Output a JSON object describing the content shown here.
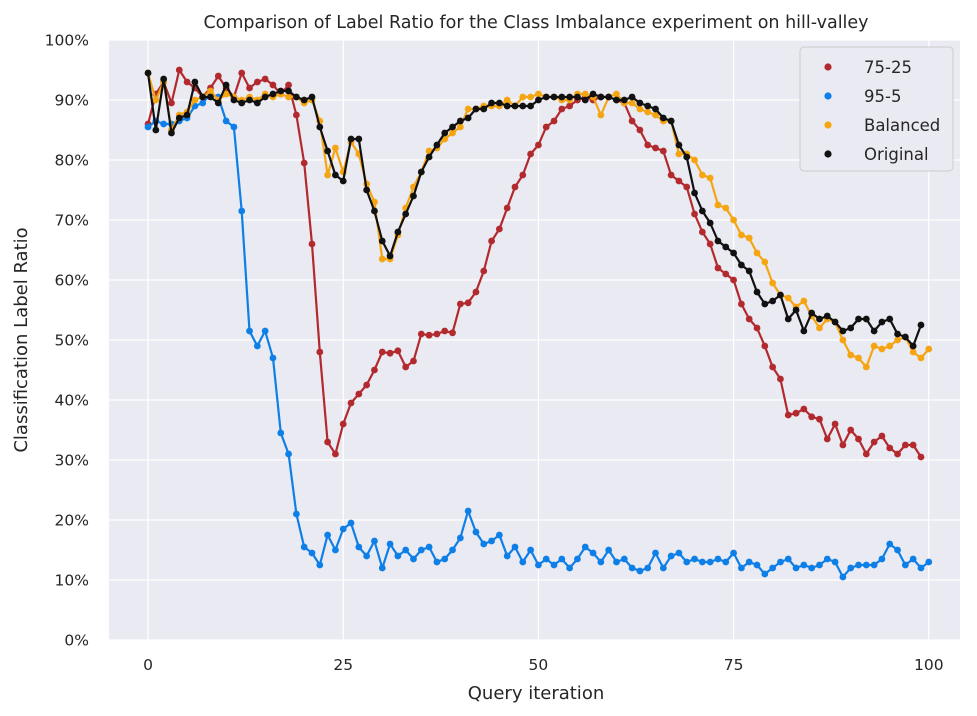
{
  "chart_data": {
    "type": "line",
    "title": "Comparison of Label Ratio for the Class Imbalance experiment on hill-valley",
    "xlabel": "Query iteration",
    "ylabel": "Classification Label Ratio",
    "xlim": [
      -5,
      104
    ],
    "ylim": [
      0,
      100
    ],
    "xticks": [
      0,
      25,
      50,
      75,
      100
    ],
    "yticks": [
      0,
      10,
      20,
      30,
      40,
      50,
      60,
      70,
      80,
      90,
      100
    ],
    "ytick_labels": [
      "0%",
      "10%",
      "20%",
      "30%",
      "40%",
      "50%",
      "60%",
      "70%",
      "80%",
      "90%",
      "100%"
    ],
    "xtick_labels": [
      "0",
      "25",
      "50",
      "75",
      "100"
    ],
    "grid": true,
    "background": "#eaeaf2",
    "legend_position": "top-right",
    "markers": "dots",
    "series": [
      {
        "name": "75-25",
        "color": "#b22a2e",
        "values": [
          86,
          91,
          93,
          89.5,
          95,
          93,
          92,
          90.5,
          92,
          94,
          92,
          90.5,
          94.5,
          92,
          93,
          93.5,
          92.5,
          91,
          92.5,
          87.5,
          79.5,
          66,
          48,
          33,
          31,
          36,
          39.5,
          41,
          42.5,
          45,
          48,
          47.8,
          48.2,
          45.5,
          46.5,
          51,
          50.8,
          51,
          51.5,
          51.2,
          56,
          56.2,
          58,
          61.5,
          66.5,
          68.5,
          72,
          75.5,
          77.5,
          81,
          82.5,
          85.5,
          86.5,
          88.5,
          89,
          90,
          90.5,
          90,
          90.5,
          90.5,
          90,
          89.5,
          86.5,
          85,
          82.5,
          82,
          81.5,
          77.5,
          76.5,
          75.5,
          71,
          68,
          66,
          62,
          61,
          60,
          56,
          53.5,
          52,
          49,
          45.5,
          43.5,
          37.5,
          37.8,
          38.5,
          37.2,
          36.8,
          33.5,
          36,
          32.5,
          35,
          33.5,
          31,
          33,
          34,
          32,
          31,
          32.5,
          32.5,
          30.5
        ]
      },
      {
        "name": "95-5",
        "color": "#0f7fe8",
        "values": [
          85.5,
          86.5,
          86,
          86,
          86.5,
          87,
          89,
          89.5,
          91,
          90.5,
          86.5,
          85.5,
          71.5,
          51.5,
          49,
          51.5,
          47,
          34.5,
          31,
          21,
          15.5,
          14.5,
          12.5,
          17.5,
          15,
          18.5,
          19.5,
          15.5,
          14,
          16.5,
          12,
          16,
          14,
          15,
          13.5,
          15,
          15.5,
          13,
          13.5,
          15,
          17,
          21.5,
          18,
          16,
          16.5,
          17.5,
          14,
          15.5,
          13,
          15,
          12.5,
          13.5,
          12.5,
          13.5,
          12,
          13.5,
          15.5,
          14.5,
          13,
          15,
          13,
          13.5,
          12,
          11.5,
          12,
          14.5,
          12,
          14,
          14.5,
          13,
          13.5,
          13,
          13,
          13.5,
          13,
          14.5,
          12,
          13,
          12.5,
          11,
          12,
          13,
          13.5,
          12,
          12.5,
          12,
          12.5,
          13.5,
          13,
          10.5,
          12,
          12.5,
          12.5,
          12.5,
          13.5,
          16,
          15,
          12.5,
          13.5,
          12,
          13
        ]
      },
      {
        "name": "Balanced",
        "color": "#f5a511",
        "values": [
          94.5,
          90,
          93,
          85,
          87.5,
          88,
          90,
          90.5,
          91.5,
          90,
          91,
          90.5,
          90,
          90.5,
          90,
          91,
          90.5,
          91,
          90.5,
          90.5,
          89.5,
          90,
          86.5,
          77.5,
          82,
          78,
          83,
          81,
          76,
          73,
          63.5,
          63.5,
          67.5,
          72,
          75.5,
          78,
          81.5,
          82,
          83.5,
          84.5,
          85.5,
          88.5,
          88.5,
          89,
          89,
          89,
          90,
          89,
          90.5,
          90.5,
          91,
          90.5,
          90.5,
          90,
          90,
          91,
          91,
          90.5,
          87.5,
          90.5,
          91,
          89.5,
          89.5,
          88.5,
          88,
          87.5,
          86.5,
          86.5,
          81,
          81,
          80,
          77.5,
          77,
          72.5,
          72,
          70,
          67.5,
          67,
          64.5,
          63,
          59.5,
          57.5,
          57,
          55.5,
          56.5,
          54,
          52,
          53.5,
          53,
          50,
          47.5,
          47,
          45.5,
          49,
          48.5,
          49,
          50,
          50.5,
          48,
          47,
          48.5
        ]
      },
      {
        "name": "Original",
        "color": "#111111",
        "values": [
          94.5,
          85,
          93.5,
          84.5,
          87,
          87.5,
          93,
          90.5,
          90.5,
          89.5,
          92.5,
          90,
          89.5,
          90,
          89.5,
          90.5,
          91,
          91.5,
          91.5,
          90.5,
          90,
          90.5,
          85.5,
          81.5,
          77.5,
          76.5,
          83.5,
          83.5,
          75,
          71.5,
          66.5,
          64,
          68,
          71,
          74,
          78,
          80.5,
          82.5,
          84.5,
          85.5,
          86.5,
          87,
          88.5,
          88.5,
          89.5,
          89.5,
          89,
          89,
          89,
          89,
          90,
          90.5,
          90.5,
          90.5,
          90.5,
          90.5,
          90,
          91,
          90.5,
          90.5,
          90,
          90,
          90.5,
          89.5,
          89,
          88.5,
          87,
          86.5,
          82.5,
          80.5,
          74.5,
          71.5,
          69.5,
          66.5,
          65.5,
          64.5,
          62.5,
          61.5,
          58,
          56,
          56.5,
          57.5,
          53.5,
          55,
          51.5,
          54.5,
          53.5,
          54,
          53,
          51.5,
          52,
          53.5,
          53.5,
          51.5,
          53,
          53.5,
          51,
          50.5,
          49,
          52.5
        ]
      }
    ]
  }
}
